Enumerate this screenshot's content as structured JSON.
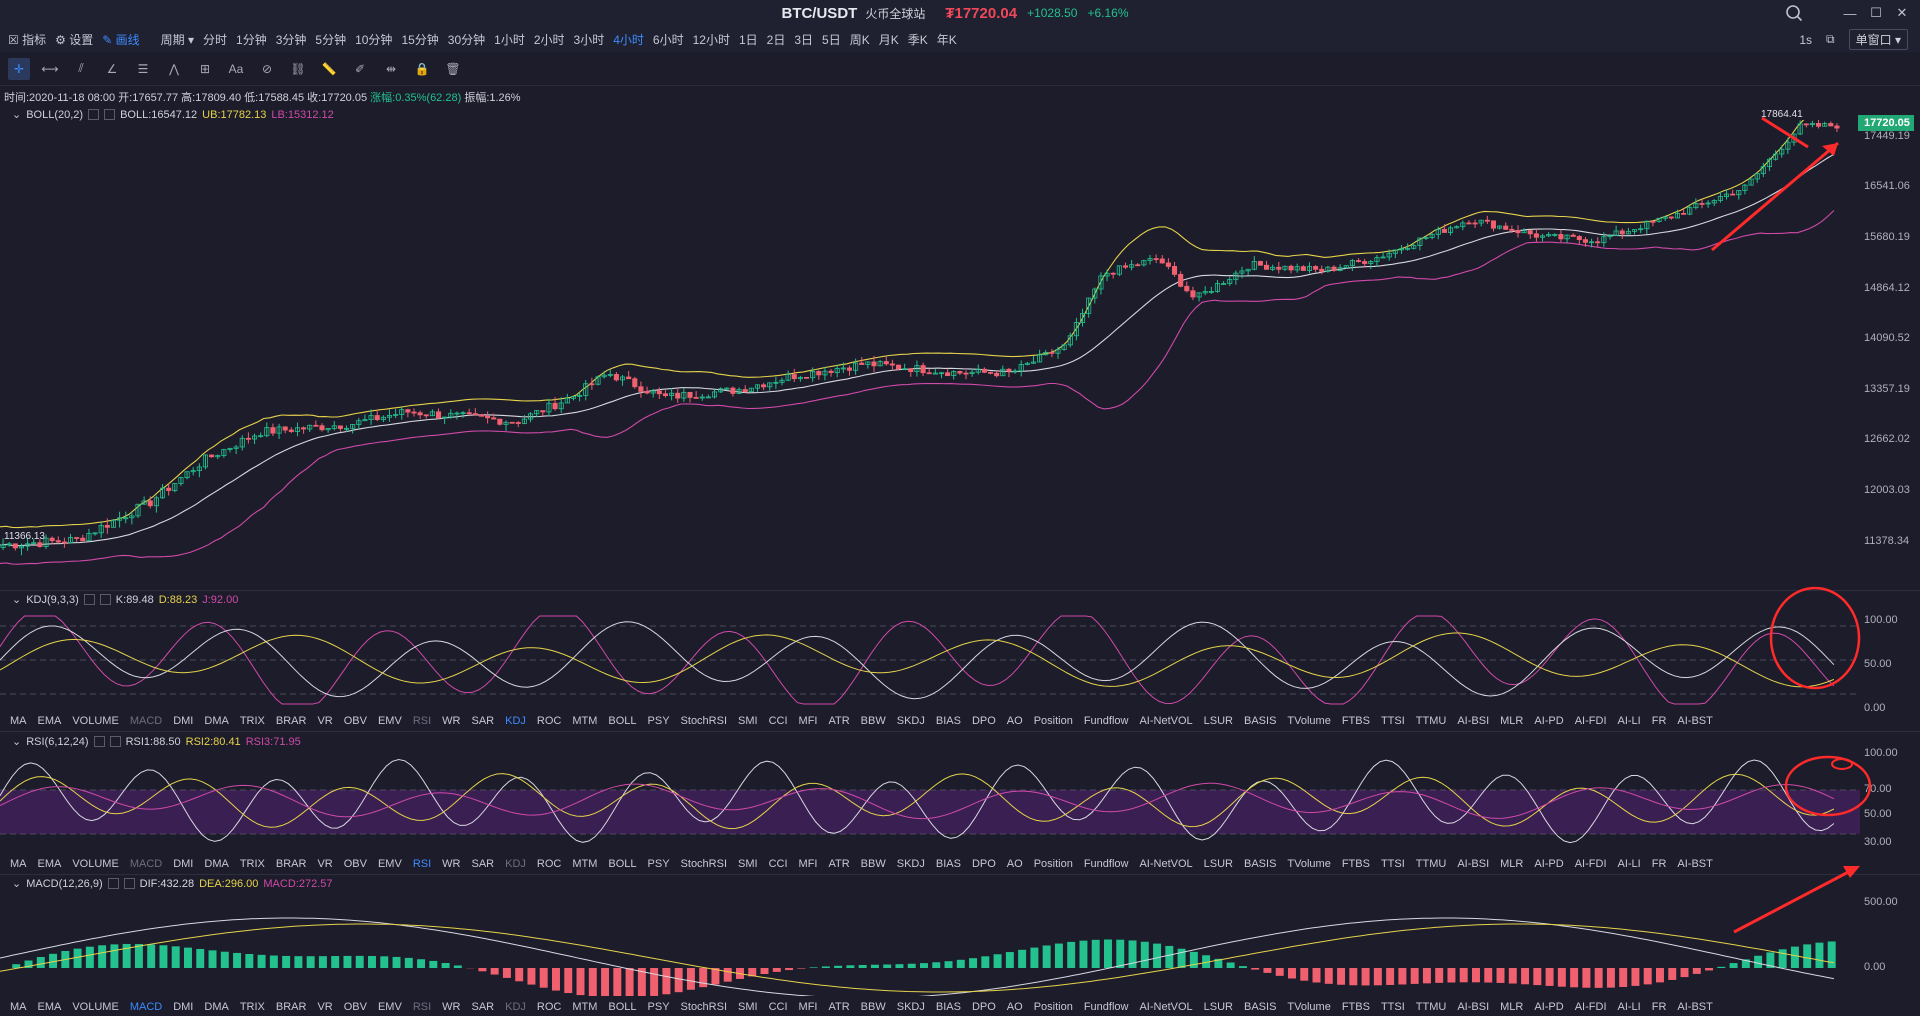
{
  "title": {
    "pair": "BTC/USDT",
    "exchange": "火币全球站",
    "price": "₮17720.04",
    "change": "+1028.50",
    "change_pct": "+6.16%"
  },
  "periods": {
    "label": "周期",
    "items": [
      "分时",
      "1分钟",
      "3分钟",
      "5分钟",
      "10分钟",
      "15分钟",
      "30分钟",
      "1小时",
      "2小时",
      "3小时",
      "4小时",
      "6小时",
      "12小时",
      "1日",
      "2日",
      "3日",
      "5日",
      "周K",
      "月K",
      "季K",
      "年K"
    ],
    "active": "4小时",
    "left": [
      "指标",
      "设置",
      "画线"
    ],
    "right_interval": "1s",
    "window_mode": "单窗口"
  },
  "ohlc": {
    "time": "时间:2020-11-18 08:00",
    "open": "开:17657.77",
    "high": "高:17809.40",
    "low": "低:17588.45",
    "close": "收:17720.05",
    "change": "涨幅:0.35%(62.28)",
    "amplitude": "振幅:1.26%"
  },
  "boll": {
    "name": "BOLL(20,2)",
    "mid": "BOLL:16547.12",
    "ub": "UB:17782.13",
    "lb": "LB:15312.12"
  },
  "kdj": {
    "name": "KDJ(9,3,3)",
    "k": "K:89.48",
    "d": "D:88.23",
    "j": "J:92.00"
  },
  "rsi": {
    "name": "RSI(6,12,24)",
    "r1": "RSI1:88.50",
    "r2": "RSI2:80.41",
    "r3": "RSI3:71.95"
  },
  "macd": {
    "name": "MACD(12,26,9)",
    "dif": "DIF:432.28",
    "dea": "DEA:296.00",
    "macd": "MACD:272.57"
  },
  "price_axis": [
    "17449.19",
    "16541.06",
    "15680.19",
    "14864.12",
    "14090.52",
    "13357.19",
    "12662.02",
    "12003.03",
    "11378.34"
  ],
  "kdj_axis": [
    "100.00",
    "50.00",
    "0.00"
  ],
  "rsi_axis": [
    "100.00",
    "70.00",
    "50.00",
    "30.00"
  ],
  "macd_axis": [
    "500.00",
    "0.00"
  ],
  "last_price_tag": "17720.05",
  "high_label": "17864.41",
  "low_label": "11366.13",
  "indicator_tabs": [
    "MA",
    "EMA",
    "VOLUME",
    "MACD",
    "DMI",
    "DMA",
    "TRIX",
    "BRAR",
    "VR",
    "OBV",
    "EMV",
    "RSI",
    "WR",
    "SAR",
    "KDJ",
    "ROC",
    "MTM",
    "BOLL",
    "PSY",
    "StochRSI",
    "SMI",
    "CCI",
    "MFI",
    "ATR",
    "BBW",
    "SKDJ",
    "BIAS",
    "DPO",
    "AO",
    "Position",
    "Fundflow",
    "AI-NetVOL",
    "LSUR",
    "BASIS",
    "TVolume",
    "FTBS",
    "TTSI",
    "TTMU",
    "AI-BSI",
    "MLR",
    "AI-PD",
    "AI-FDI",
    "AI-LI",
    "FR",
    "AI-BST"
  ],
  "colors": {
    "up": "#22c18e",
    "down": "#f0606e",
    "boll_up": "#e6d34a",
    "boll_mid": "#d8d8e0",
    "boll_low": "#d04aa8",
    "annot": "#ff2a2a"
  }
}
